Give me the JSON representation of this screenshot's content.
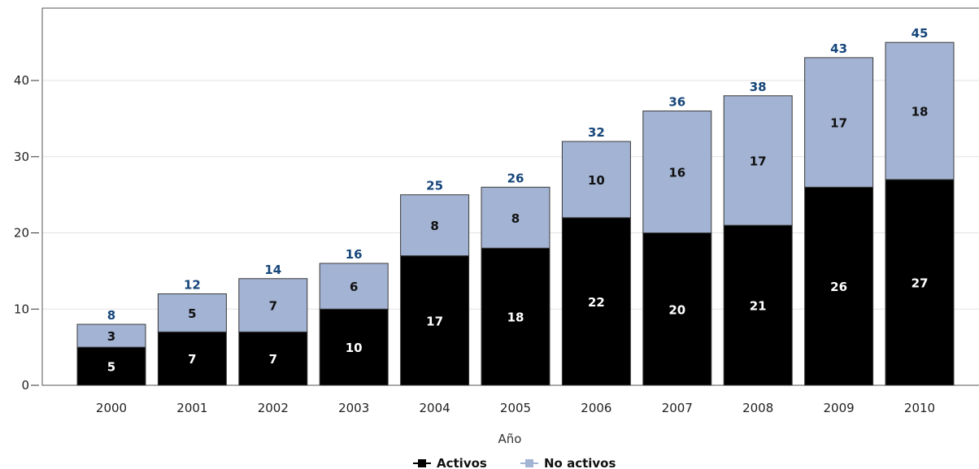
{
  "chart_data": {
    "type": "bar",
    "stacked": true,
    "categories": [
      "2000",
      "2001",
      "2002",
      "2003",
      "2004",
      "2005",
      "2006",
      "2007",
      "2008",
      "2009",
      "2010"
    ],
    "series": [
      {
        "name": "Activos",
        "values": [
          5,
          7,
          7,
          10,
          17,
          18,
          22,
          20,
          21,
          26,
          27
        ],
        "color": "#000000",
        "label_color": "#ffffff"
      },
      {
        "name": "No activos",
        "values": [
          3,
          5,
          7,
          6,
          8,
          8,
          10,
          16,
          17,
          17,
          18
        ],
        "color": "#a3b3d3",
        "label_color": "#111111"
      }
    ],
    "totals": [
      8,
      12,
      14,
      16,
      25,
      26,
      32,
      36,
      38,
      43,
      45
    ],
    "total_label_color": "#16467a",
    "xlabel": "Año",
    "ylabel": "",
    "ylim": [
      0,
      49.5
    ],
    "yticks": [
      0,
      10,
      20,
      30,
      40
    ],
    "grid": true,
    "legend_position": "bottom-center"
  }
}
